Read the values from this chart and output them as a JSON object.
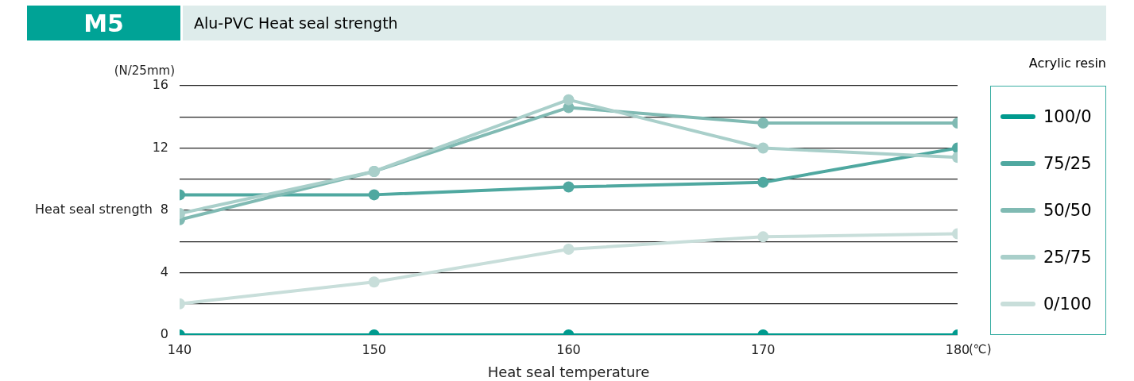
{
  "chart_data": {
    "type": "line",
    "title": "Alu-PVC Heat seal strength",
    "subtitle": "M5",
    "xlabel": "Heat seal temperature",
    "ylabel": "Heat seal strength",
    "legend_title": "Acrylic resin",
    "annotations": [
      "(N/25mm)",
      "(℃)"
    ],
    "x": [
      140,
      150,
      160,
      170,
      180
    ],
    "xlim": [
      140,
      180
    ],
    "xticks": [
      140,
      150,
      160,
      170,
      180
    ],
    "ylim": [
      0,
      16
    ],
    "yticks": [
      0,
      {
        "value": 2,
        "label": null
      },
      4,
      {
        "value": 6,
        "label": null
      },
      8,
      {
        "value": 10,
        "label": null
      },
      12,
      {
        "value": 14,
        "label": null
      },
      16
    ],
    "grid": "y",
    "legend": "right",
    "marker": "circle",
    "line_style": "solid",
    "series": [
      {
        "name": "100/0",
        "color": "#009a8e",
        "values": [
          0,
          0,
          0,
          0,
          0
        ]
      },
      {
        "name": "75/25",
        "color": "#4fa8a0",
        "values": [
          9.0,
          9.0,
          9.5,
          9.8,
          12.0
        ]
      },
      {
        "name": "50/50",
        "color": "#80bab3",
        "values": [
          7.4,
          10.5,
          14.6,
          13.6,
          13.6
        ]
      },
      {
        "name": "25/75",
        "color": "#a9cfca",
        "values": [
          7.8,
          10.5,
          15.1,
          12.0,
          11.4
        ]
      },
      {
        "name": "0/100",
        "color": "#c8deda",
        "values": [
          2.0,
          3.4,
          5.5,
          6.3,
          6.5
        ]
      }
    ]
  }
}
